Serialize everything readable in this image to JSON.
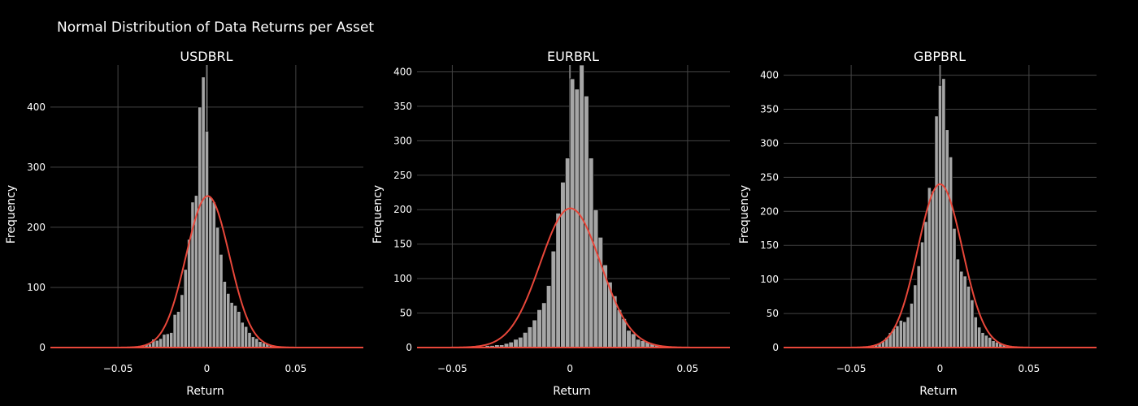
{
  "title": "Normal Distribution of Data Returns per Asset",
  "colors": {
    "background": "#000000",
    "grid": "#444444",
    "bar_fill": "#a6a6a6",
    "bar_edge": "#000000",
    "curve": "#e8473a",
    "zero_line": "#777777",
    "text": "#ffffff"
  },
  "chart_data": [
    {
      "type": "bar",
      "title": "USDBRL",
      "xlabel": "Return",
      "ylabel": "Frequency",
      "xlim": [
        -0.088,
        0.088
      ],
      "ylim": [
        0,
        470
      ],
      "xticks": [
        -0.05,
        0,
        0.05
      ],
      "xtick_labels": [
        "−0.05",
        "0",
        "0.05"
      ],
      "yticks": [
        0,
        100,
        200,
        300,
        400
      ],
      "yticks_labels": [
        "0",
        "100",
        "200",
        "300",
        "400"
      ],
      "grid": true,
      "histogram": {
        "bin_centers": [
          -0.068,
          -0.064,
          -0.04,
          -0.038,
          -0.036,
          -0.034,
          -0.032,
          -0.03,
          -0.028,
          -0.026,
          -0.024,
          -0.022,
          -0.02,
          -0.018,
          -0.016,
          -0.014,
          -0.012,
          -0.01,
          -0.008,
          -0.006,
          -0.004,
          -0.002,
          0,
          0.002,
          0.004,
          0.006,
          0.008,
          0.01,
          0.012,
          0.014,
          0.016,
          0.018,
          0.02,
          0.022,
          0.024,
          0.026,
          0.028,
          0.03,
          0.032,
          0.034,
          0.036,
          0.038,
          0.04,
          0.042,
          0.05,
          0.056
        ],
        "counts": [
          1,
          1,
          2,
          3,
          3,
          5,
          6,
          14,
          12,
          15,
          22,
          23,
          25,
          55,
          60,
          88,
          130,
          180,
          242,
          253,
          400,
          450,
          360,
          250,
          242,
          200,
          155,
          110,
          90,
          75,
          70,
          60,
          42,
          35,
          25,
          18,
          15,
          10,
          8,
          6,
          4,
          3,
          2,
          2,
          1,
          1
        ]
      },
      "normal_curve": {
        "mean": 0.0005,
        "peak": 252,
        "std": 0.0122
      }
    },
    {
      "type": "bar",
      "title": "EURBRL",
      "xlabel": "Return",
      "ylabel": "Frequency",
      "xlim": [
        -0.065,
        0.068
      ],
      "ylim": [
        0,
        410
      ],
      "xticks": [
        -0.05,
        0,
        0.05
      ],
      "xtick_labels": [
        "−0.05",
        "0",
        "0.05"
      ],
      "yticks": [
        0,
        50,
        100,
        150,
        200,
        250,
        300,
        350,
        400
      ],
      "yticks_labels": [
        "0",
        "50",
        "100",
        "150",
        "200",
        "250",
        "300",
        "350",
        "400"
      ],
      "grid": true,
      "histogram": {
        "bin_centers": [
          -0.035,
          -0.033,
          -0.031,
          -0.029,
          -0.027,
          -0.025,
          -0.023,
          -0.021,
          -0.019,
          -0.017,
          -0.015,
          -0.013,
          -0.011,
          -0.009,
          -0.007,
          -0.005,
          -0.003,
          -0.001,
          0.001,
          0.003,
          0.005,
          0.007,
          0.009,
          0.011,
          0.013,
          0.015,
          0.017,
          0.019,
          0.021,
          0.023,
          0.025,
          0.027,
          0.029,
          0.031,
          0.033,
          0.035,
          0.037,
          0.044,
          0.046,
          0.049,
          0.055
        ],
        "counts": [
          3,
          3,
          4,
          4,
          6,
          8,
          12,
          15,
          22,
          30,
          40,
          55,
          65,
          90,
          140,
          195,
          240,
          275,
          390,
          375,
          410,
          365,
          275,
          200,
          160,
          120,
          95,
          75,
          55,
          42,
          25,
          20,
          12,
          10,
          8,
          6,
          4,
          2,
          1,
          1,
          1
        ]
      },
      "normal_curve": {
        "mean": 0.0002,
        "peak": 202,
        "std": 0.0128
      }
    },
    {
      "type": "bar",
      "title": "GBPBRL",
      "xlabel": "Return",
      "ylabel": "Frequency",
      "xlim": [
        -0.088,
        0.088
      ],
      "ylim": [
        0,
        415
      ],
      "xticks": [
        -0.05,
        0,
        0.05
      ],
      "xtick_labels": [
        "−0.05",
        "0",
        "0.05"
      ],
      "yticks": [
        0,
        50,
        100,
        150,
        200,
        250,
        300,
        350,
        400
      ],
      "yticks_labels": [
        "0",
        "50",
        "100",
        "150",
        "200",
        "250",
        "300",
        "350",
        "400"
      ],
      "grid": true,
      "histogram": {
        "bin_centers": [
          -0.05,
          -0.046,
          -0.04,
          -0.038,
          -0.036,
          -0.034,
          -0.032,
          -0.03,
          -0.028,
          -0.026,
          -0.024,
          -0.022,
          -0.02,
          -0.018,
          -0.016,
          -0.014,
          -0.012,
          -0.01,
          -0.008,
          -0.006,
          -0.004,
          -0.002,
          0,
          0.002,
          0.004,
          0.006,
          0.008,
          0.01,
          0.012,
          0.014,
          0.016,
          0.018,
          0.02,
          0.022,
          0.024,
          0.026,
          0.028,
          0.03,
          0.032,
          0.034,
          0.036,
          0.038,
          0.05,
          0.056
        ],
        "counts": [
          1,
          1,
          2,
          3,
          5,
          6,
          10,
          15,
          22,
          28,
          32,
          40,
          38,
          45,
          65,
          92,
          120,
          155,
          185,
          235,
          230,
          340,
          385,
          395,
          320,
          280,
          175,
          130,
          112,
          105,
          90,
          70,
          45,
          30,
          22,
          18,
          15,
          10,
          8,
          6,
          4,
          3,
          1,
          1
        ]
      },
      "normal_curve": {
        "mean": 0.0,
        "peak": 240,
        "std": 0.0125
      }
    }
  ]
}
